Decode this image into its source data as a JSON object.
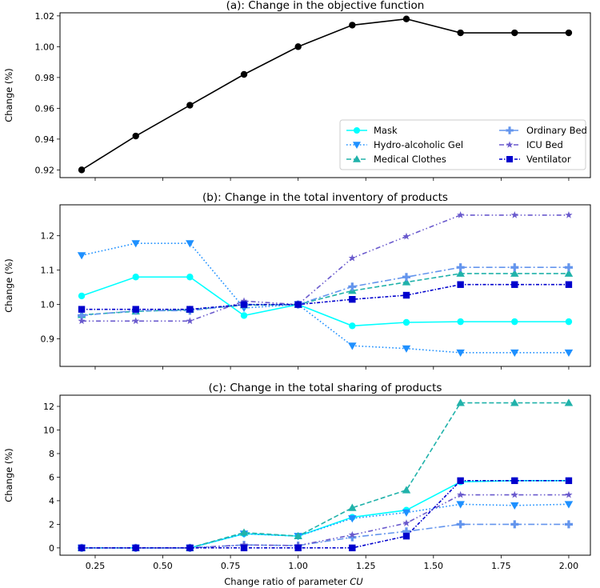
{
  "xlabel_prefix": "Change ratio of parameter ",
  "xlabel_param": "CU",
  "chart_data": [
    {
      "type": "line",
      "title": "(a): Change in the objective function",
      "ylabel": "Change (%)",
      "xlim": [
        0.12,
        2.08
      ],
      "ylim": [
        0.915,
        1.022
      ],
      "yticks": [
        "0.92",
        "0.94",
        "0.96",
        "0.98",
        "1.00",
        "1.02"
      ],
      "x": [
        0.2,
        0.4,
        0.6,
        0.8,
        1.0,
        1.2,
        1.4,
        1.6,
        1.8,
        2.0
      ],
      "series": [
        {
          "name": "Objective",
          "color": "#000000",
          "values": [
            0.92,
            0.942,
            0.962,
            0.982,
            1.0,
            1.014,
            1.018,
            1.009,
            1.009,
            1.009
          ]
        }
      ],
      "legend_position": "lower-right",
      "legend": [
        "Mask",
        "Hydro-alcoholic Gel",
        "Medical Clothes",
        "Ordinary Bed",
        "ICU Bed",
        "Ventilator"
      ]
    },
    {
      "type": "line",
      "title": "(b): Change in the total inventory of products",
      "ylabel": "Change (%)",
      "xlim": [
        0.12,
        2.08
      ],
      "ylim": [
        0.82,
        1.29
      ],
      "yticks": [
        "0.9",
        "1.0",
        "1.1",
        "1.2"
      ],
      "x": [
        0.2,
        0.4,
        0.6,
        0.8,
        1.0,
        1.2,
        1.4,
        1.6,
        1.8,
        2.0
      ],
      "series": [
        {
          "name": "Mask",
          "color": "#00ffff",
          "values": [
            1.025,
            1.08,
            1.08,
            0.968,
            1.0,
            0.938,
            0.948,
            0.95,
            0.95,
            0.95
          ]
        },
        {
          "name": "Hydro-alcoholic Gel",
          "color": "#1e90ff",
          "values": [
            1.143,
            1.178,
            1.178,
            0.99,
            1.0,
            0.88,
            0.872,
            0.86,
            0.86,
            0.86
          ]
        },
        {
          "name": "Medical Clothes",
          "color": "#20b2aa",
          "values": [
            0.97,
            0.98,
            0.985,
            0.998,
            1.0,
            1.04,
            1.065,
            1.09,
            1.09,
            1.09
          ]
        },
        {
          "name": "Ordinary Bed",
          "color": "#6495ed",
          "values": [
            0.968,
            0.982,
            0.982,
            1.0,
            1.0,
            1.052,
            1.08,
            1.108,
            1.108,
            1.108
          ]
        },
        {
          "name": "ICU Bed",
          "color": "#6a5acd",
          "values": [
            0.952,
            0.952,
            0.952,
            1.01,
            1.0,
            1.135,
            1.198,
            1.26,
            1.26,
            1.26
          ]
        },
        {
          "name": "Ventilator",
          "color": "#0000cd",
          "values": [
            0.986,
            0.986,
            0.986,
            1.0,
            1.0,
            1.015,
            1.027,
            1.058,
            1.058,
            1.058
          ]
        }
      ]
    },
    {
      "type": "line",
      "title": "(c): Change in the total sharing of products",
      "ylabel": "Change (%)",
      "xlim": [
        0.12,
        2.08
      ],
      "ylim": [
        -0.62,
        12.95
      ],
      "yticks": [
        "0",
        "2",
        "4",
        "6",
        "8",
        "10",
        "12"
      ],
      "xticks": [
        "0.25",
        "0.50",
        "0.75",
        "1.00",
        "1.25",
        "1.50",
        "1.75",
        "2.00"
      ],
      "x": [
        0.2,
        0.4,
        0.6,
        0.8,
        1.0,
        1.2,
        1.4,
        1.6,
        1.8,
        2.0
      ],
      "series": [
        {
          "name": "Mask",
          "color": "#00ffff",
          "values": [
            0,
            0,
            0,
            1.2,
            1.0,
            2.6,
            3.2,
            5.6,
            5.7,
            5.7
          ]
        },
        {
          "name": "Hydro-alcoholic Gel",
          "color": "#1e90ff",
          "values": [
            0,
            0,
            0,
            1.2,
            1.0,
            2.5,
            3.0,
            3.7,
            3.6,
            3.7
          ]
        },
        {
          "name": "Medical Clothes",
          "color": "#20b2aa",
          "values": [
            0,
            0,
            0,
            1.3,
            1.0,
            3.4,
            4.9,
            12.3,
            12.3,
            12.3
          ]
        },
        {
          "name": "Ordinary Bed",
          "color": "#6495ed",
          "values": [
            0,
            0,
            0,
            0.25,
            0.2,
            0.9,
            1.4,
            2.0,
            2.0,
            2.0
          ]
        },
        {
          "name": "ICU Bed",
          "color": "#6a5acd",
          "values": [
            0,
            0,
            0,
            0.25,
            0.2,
            1.1,
            2.1,
            4.5,
            4.5,
            4.5
          ]
        },
        {
          "name": "Ventilator",
          "color": "#0000cd",
          "values": [
            0,
            0,
            0,
            0,
            0,
            0,
            1.0,
            5.7,
            5.7,
            5.7
          ]
        }
      ]
    }
  ]
}
